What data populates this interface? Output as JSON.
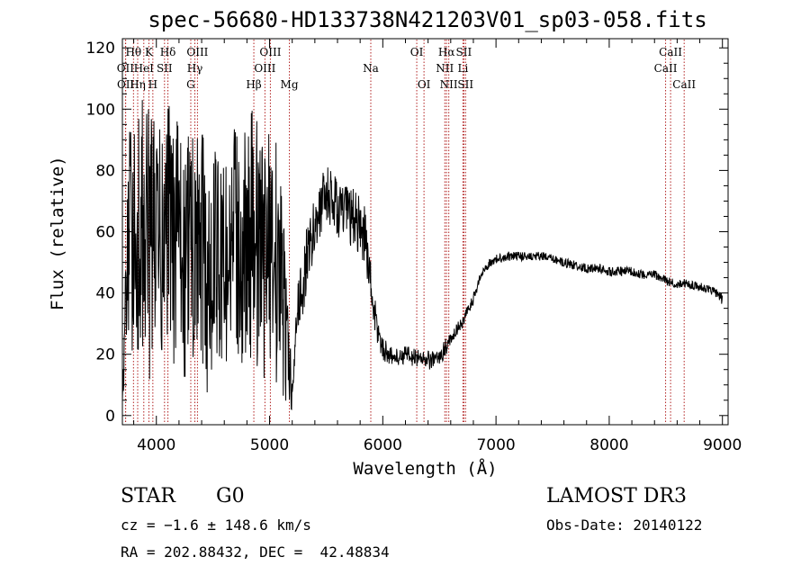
{
  "header": {
    "title": "spec-56680-HD133738N421203V01_sp03-058.fits"
  },
  "info": {
    "object_type": "STAR",
    "subclass": "G0",
    "survey": "LAMOST DR3",
    "cz": "cz = −1.6 ± 148.6 km/s",
    "radec": "RA = 202.88432, DEC =  42.48834",
    "obs_date": "Obs-Date: 20140122"
  },
  "colors": {
    "spectrum": "#000000",
    "line_markers": "#b22222",
    "axes": "#000000"
  },
  "chart_data": {
    "type": "line",
    "title": "spec-56680-HD133738N421203V01_sp03-058.fits",
    "xlabel": "Wavelength (Å)",
    "ylabel": "Flux (relative)",
    "xlim": [
      3700,
      9050
    ],
    "ylim": [
      -3,
      123
    ],
    "xticks": [
      4000,
      5000,
      6000,
      7000,
      8000,
      9000
    ],
    "yticks": [
      0,
      20,
      40,
      60,
      80,
      100,
      120
    ],
    "grid": false,
    "series": [
      {
        "x": [
          3700,
          3750,
          3800,
          3850,
          3900,
          3950,
          4000,
          4050,
          4100,
          4150,
          4200,
          4250,
          4300,
          4350,
          4400,
          4450,
          4500,
          4550,
          4600,
          4650,
          4700,
          4750,
          4800,
          4850,
          4900,
          4950,
          5000,
          5050,
          5100,
          5150,
          5200,
          5250,
          5300,
          5350,
          5400,
          5450,
          5500,
          5550,
          5600,
          5650,
          5700,
          5750,
          5800,
          5850,
          5900,
          5950,
          6000,
          6050,
          6100,
          6150,
          6200,
          6250,
          6300,
          6350,
          6400,
          6450,
          6500,
          6550,
          6600,
          6650,
          6700,
          6750,
          6800,
          6850,
          6900,
          6950,
          7000,
          7100,
          7200,
          7300,
          7400,
          7500,
          7600,
          7700,
          7800,
          7900,
          8000,
          8100,
          8200,
          8300,
          8400,
          8500,
          8600,
          8700,
          8800,
          8900,
          8950,
          9000
        ],
        "values": [
          5,
          55,
          60,
          58,
          62,
          55,
          60,
          50,
          65,
          55,
          58,
          45,
          60,
          50,
          55,
          40,
          55,
          50,
          48,
          55,
          60,
          50,
          55,
          60,
          55,
          50,
          58,
          52,
          45,
          28,
          5,
          35,
          45,
          55,
          62,
          68,
          72,
          70,
          68,
          66,
          65,
          64,
          62,
          58,
          40,
          28,
          22,
          20,
          19,
          19,
          20,
          19,
          19,
          19,
          18,
          18,
          19,
          22,
          25,
          28,
          30,
          34,
          38,
          44,
          48,
          50,
          51,
          52,
          52,
          52,
          52,
          51,
          50,
          49,
          48,
          48,
          47,
          47,
          47,
          46,
          46,
          44,
          43,
          43,
          42,
          41,
          40,
          38
        ],
        "noise": [
          0,
          35,
          40,
          42,
          45,
          45,
          40,
          45,
          40,
          40,
          40,
          38,
          40,
          40,
          40,
          40,
          35,
          35,
          35,
          35,
          35,
          38,
          40,
          40,
          40,
          38,
          40,
          40,
          40,
          25,
          4,
          10,
          12,
          10,
          10,
          10,
          10,
          10,
          10,
          10,
          10,
          10,
          10,
          10,
          8,
          5,
          4,
          3,
          3,
          3,
          3,
          3,
          3,
          3,
          3,
          3,
          3,
          3,
          2,
          2,
          2,
          2,
          2,
          1.5,
          1.5,
          1.5,
          1.5,
          1.5,
          1.5,
          1.5,
          1.5,
          1.5,
          1.5,
          1.5,
          1.5,
          1.5,
          1.5,
          1.5,
          1.5,
          1.5,
          1.5,
          1.5,
          1.5,
          1.5,
          1.5,
          1.5,
          1.5,
          2
        ]
      }
    ],
    "line_markers": [
      {
        "label": "Hθ",
        "x": 3798,
        "row": 0
      },
      {
        "label": "OII",
        "x": 3727,
        "row": 1
      },
      {
        "label": "OII",
        "x": 3729,
        "row": 2
      },
      {
        "label": "Hη",
        "x": 3835,
        "row": 2
      },
      {
        "label": "HeI",
        "x": 3889,
        "row": 1
      },
      {
        "label": "K",
        "x": 3934,
        "row": 0
      },
      {
        "label": "H",
        "x": 3969,
        "row": 2
      },
      {
        "label": "SII",
        "x": 4072,
        "row": 1
      },
      {
        "label": "Hδ",
        "x": 4102,
        "row": 0
      },
      {
        "label": "G",
        "x": 4304,
        "row": 2
      },
      {
        "label": "Hγ",
        "x": 4340,
        "row": 1
      },
      {
        "label": "OIII",
        "x": 4363,
        "row": 0
      },
      {
        "label": "Hβ",
        "x": 4861,
        "row": 2
      },
      {
        "label": "OIII",
        "x": 4959,
        "row": 1
      },
      {
        "label": "OIII",
        "x": 5007,
        "row": 0
      },
      {
        "label": "Mg",
        "x": 5175,
        "row": 2
      },
      {
        "label": "Na",
        "x": 5894,
        "row": 1
      },
      {
        "label": "OI",
        "x": 6300,
        "row": 0
      },
      {
        "label": "OI",
        "x": 6364,
        "row": 2
      },
      {
        "label": "NII",
        "x": 6548,
        "row": 1
      },
      {
        "label": "Hα",
        "x": 6563,
        "row": 0
      },
      {
        "label": "NII",
        "x": 6583,
        "row": 2
      },
      {
        "label": "Li",
        "x": 6708,
        "row": 1
      },
      {
        "label": "SII",
        "x": 6716,
        "row": 0
      },
      {
        "label": "SII",
        "x": 6731,
        "row": 2
      },
      {
        "label": "CaII",
        "x": 8498,
        "row": 1
      },
      {
        "label": "CaII",
        "x": 8542,
        "row": 0
      },
      {
        "label": "CaII",
        "x": 8662,
        "row": 2
      }
    ]
  }
}
